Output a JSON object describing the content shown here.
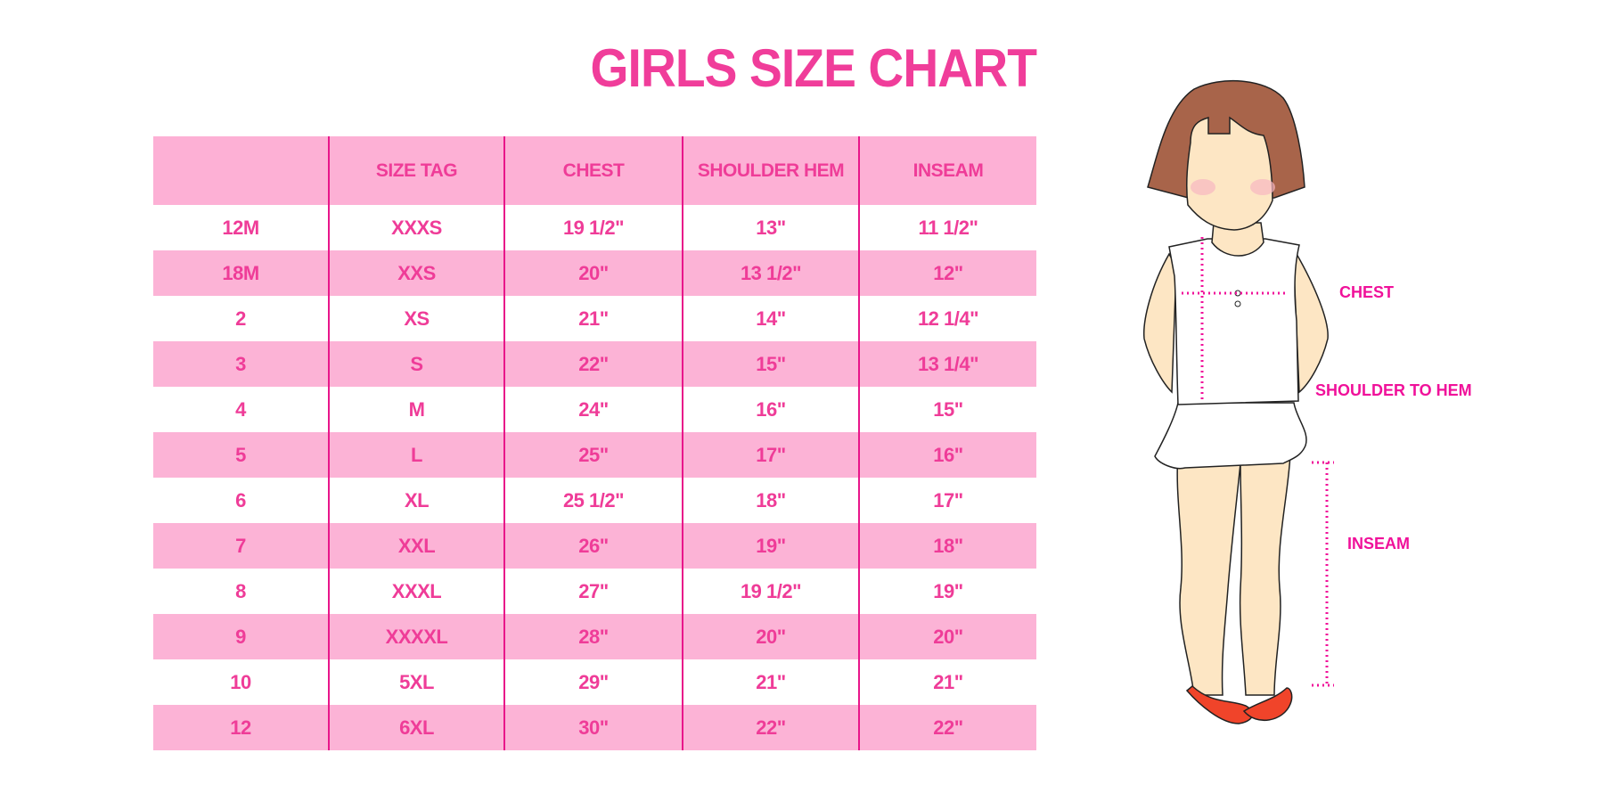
{
  "title": "GIRLS SIZE CHART",
  "table": {
    "headers": [
      "",
      "SIZE TAG",
      "CHEST",
      "SHOULDER HEM",
      "INSEAM"
    ],
    "rows": [
      [
        "12M",
        "XXXS",
        "19 1/2\"",
        "13\"",
        "11 1/2\""
      ],
      [
        "18M",
        "XXS",
        "20\"",
        "13 1/2\"",
        "12\""
      ],
      [
        "2",
        "XS",
        "21\"",
        "14\"",
        "12 1/4\""
      ],
      [
        "3",
        "S",
        "22\"",
        "15\"",
        "13 1/4\""
      ],
      [
        "4",
        "M",
        "24\"",
        "16\"",
        "15\""
      ],
      [
        "5",
        "L",
        "25\"",
        "17\"",
        "16\""
      ],
      [
        "6",
        "XL",
        "25 1/2\"",
        "18\"",
        "17\""
      ],
      [
        "7",
        "XXL",
        "26\"",
        "19\"",
        "18\""
      ],
      [
        "8",
        "XXXL",
        "27\"",
        "19 1/2\"",
        "19\""
      ],
      [
        "9",
        "XXXXL",
        "28\"",
        "20\"",
        "20\""
      ],
      [
        "10",
        "5XL",
        "29\"",
        "21\"",
        "21\""
      ],
      [
        "12",
        "6XL",
        "30\"",
        "22\"",
        "22\""
      ]
    ]
  },
  "figure": {
    "labels": {
      "chest": "CHEST",
      "shoulder": "SHOULDER TO HEM",
      "inseam": "INSEAM"
    }
  },
  "colors": {
    "accent": "#f03d9a",
    "header_bg": "#fdb0d5",
    "stripe": "#fcb3d6",
    "divider": "#e8168a"
  }
}
